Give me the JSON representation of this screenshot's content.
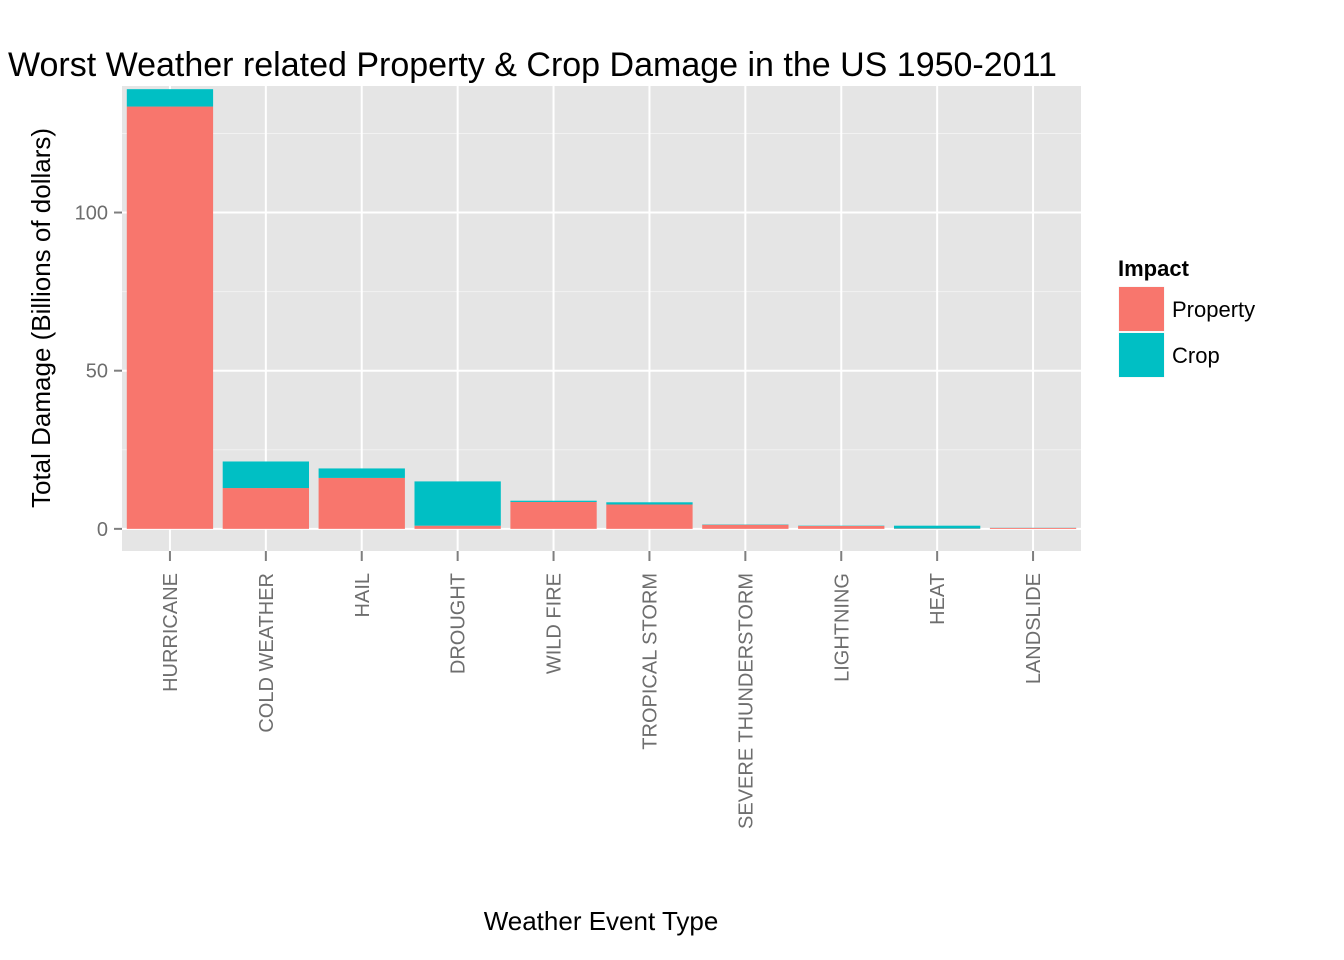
{
  "chart_data": {
    "type": "bar",
    "stacked": true,
    "title": "Worst Weather related Property & Crop Damage in the US 1950-2011",
    "xlabel": "Weather Event Type",
    "ylabel": "Total Damage (Billions of dollars)",
    "ylim": [
      -7,
      140
    ],
    "yticks": [
      0,
      50,
      100
    ],
    "grid": true,
    "categories": [
      "HURRICANE",
      "COLD WEATHER",
      "HAIL",
      "DROUGHT",
      "WILD FIRE",
      "TROPICAL STORM",
      "SEVERE THUNDERSTORM",
      "LIGHTNING",
      "HEAT",
      "LANDSLIDE"
    ],
    "series": [
      {
        "name": "Property",
        "color": "#F8766D",
        "values": [
          133.5,
          12.9,
          16.1,
          1.0,
          8.5,
          7.7,
          1.3,
          0.9,
          0.1,
          0.3
        ]
      },
      {
        "name": "Crop",
        "color": "#00BFC4",
        "values": [
          5.5,
          8.4,
          3.0,
          14.0,
          0.4,
          0.7,
          0.1,
          0.1,
          0.9,
          0.05
        ]
      }
    ],
    "legend": {
      "title": "Impact",
      "position": "right"
    }
  }
}
